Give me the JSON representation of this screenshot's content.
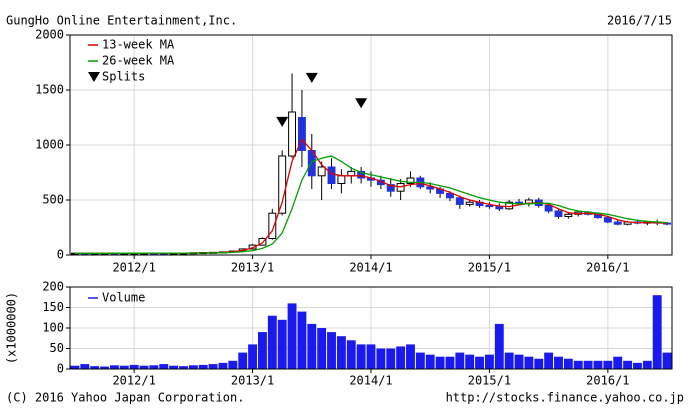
{
  "chart_data": [
    {
      "type": "candlestick",
      "title": "GungHo Online Entertainment,Inc.",
      "date": "2016/7/15",
      "x": [
        "2011/7",
        "2011/8",
        "2011/9",
        "2011/10",
        "2011/11",
        "2011/12",
        "2012/1",
        "2012/2",
        "2012/3",
        "2012/4",
        "2012/5",
        "2012/6",
        "2012/7",
        "2012/8",
        "2012/9",
        "2012/10",
        "2012/11",
        "2012/12",
        "2013/1",
        "2013/2",
        "2013/3",
        "2013/4",
        "2013/5",
        "2013/6",
        "2013/7",
        "2013/8",
        "2013/9",
        "2013/10",
        "2013/11",
        "2013/12",
        "2014/1",
        "2014/2",
        "2014/3",
        "2014/4",
        "2014/5",
        "2014/6",
        "2014/7",
        "2014/8",
        "2014/9",
        "2014/10",
        "2014/11",
        "2014/12",
        "2015/1",
        "2015/2",
        "2015/3",
        "2015/4",
        "2015/5",
        "2015/6",
        "2015/7",
        "2015/8",
        "2015/9",
        "2015/10",
        "2015/11",
        "2015/12",
        "2016/1",
        "2016/2",
        "2016/3",
        "2016/4",
        "2016/5",
        "2016/6",
        "2016/7"
      ],
      "open": [
        15,
        16,
        15,
        16,
        16,
        15,
        16,
        17,
        18,
        17,
        16,
        17,
        18,
        20,
        22,
        24,
        28,
        36,
        55,
        90,
        150,
        380,
        900,
        1250,
        950,
        720,
        800,
        650,
        720,
        760,
        700,
        680,
        640,
        580,
        650,
        700,
        620,
        600,
        560,
        520,
        460,
        480,
        450,
        440,
        420,
        480,
        470,
        500,
        450,
        400,
        350,
        370,
        390,
        370,
        340,
        300,
        280,
        300,
        290,
        300,
        290
      ],
      "high": [
        17,
        17,
        17,
        17,
        17,
        17,
        18,
        19,
        20,
        19,
        18,
        19,
        21,
        24,
        26,
        30,
        40,
        60,
        100,
        160,
        420,
        950,
        1650,
        1500,
        1100,
        850,
        880,
        780,
        800,
        800,
        760,
        720,
        700,
        690,
        760,
        720,
        660,
        620,
        580,
        540,
        500,
        500,
        480,
        470,
        500,
        510,
        520,
        520,
        470,
        420,
        390,
        400,
        400,
        380,
        350,
        320,
        310,
        320,
        310,
        320,
        300
      ],
      "low": [
        14,
        14,
        14,
        15,
        14,
        14,
        15,
        16,
        16,
        15,
        15,
        16,
        17,
        19,
        20,
        22,
        26,
        34,
        50,
        85,
        140,
        360,
        880,
        800,
        600,
        500,
        600,
        560,
        650,
        650,
        620,
        600,
        530,
        500,
        620,
        600,
        560,
        520,
        490,
        420,
        440,
        430,
        420,
        400,
        410,
        450,
        440,
        430,
        380,
        330,
        330,
        350,
        360,
        330,
        290,
        270,
        270,
        280,
        270,
        270,
        270
      ],
      "close": [
        16,
        15,
        16,
        16,
        15,
        16,
        17,
        18,
        17,
        16,
        17,
        18,
        20,
        22,
        24,
        28,
        36,
        55,
        90,
        150,
        380,
        900,
        1300,
        950,
        720,
        800,
        650,
        720,
        760,
        700,
        680,
        640,
        580,
        650,
        700,
        620,
        600,
        560,
        520,
        460,
        480,
        450,
        440,
        420,
        480,
        470,
        500,
        450,
        400,
        350,
        370,
        390,
        370,
        340,
        300,
        280,
        300,
        290,
        300,
        290,
        285
      ],
      "up_color": "#ffffff",
      "down_color": "#2233dd",
      "series": [
        {
          "name": "13-week MA",
          "color": "#e00000",
          "values": [
            15,
            15,
            15,
            16,
            16,
            15,
            16,
            17,
            17,
            17,
            17,
            17,
            18,
            20,
            22,
            25,
            30,
            42,
            65,
            110,
            220,
            480,
            850,
            1050,
            950,
            820,
            740,
            720,
            720,
            720,
            700,
            670,
            630,
            620,
            640,
            650,
            630,
            600,
            570,
            530,
            500,
            480,
            460,
            445,
            440,
            455,
            470,
            475,
            460,
            420,
            385,
            375,
            380,
            370,
            350,
            320,
            300,
            295,
            295,
            293,
            290
          ]
        },
        {
          "name": "26-week MA",
          "color": "#00a000",
          "values": [
            15,
            15,
            15,
            15,
            16,
            16,
            16,
            16,
            17,
            17,
            17,
            17,
            17,
            18,
            19,
            21,
            24,
            30,
            40,
            60,
            100,
            200,
            420,
            680,
            850,
            880,
            900,
            850,
            790,
            750,
            730,
            710,
            690,
            670,
            660,
            660,
            650,
            630,
            610,
            580,
            550,
            520,
            500,
            480,
            470,
            465,
            465,
            470,
            470,
            450,
            420,
            400,
            390,
            380,
            370,
            350,
            330,
            315,
            305,
            300,
            295
          ]
        }
      ],
      "splits": {
        "name": "Splits",
        "x": [
          "2013/4",
          "2013/7",
          "2013/12"
        ],
        "values": [
          1210,
          1610,
          1380
        ]
      },
      "ylim": [
        0,
        2000
      ],
      "yticks": [
        0,
        500,
        1000,
        1500,
        2000
      ],
      "xticks": [
        "2012/1",
        "2013/1",
        "2014/1",
        "2015/1",
        "2016/1"
      ],
      "grid": true
    },
    {
      "type": "bar",
      "x": [
        "2011/7",
        "2011/8",
        "2011/9",
        "2011/10",
        "2011/11",
        "2011/12",
        "2012/1",
        "2012/2",
        "2012/3",
        "2012/4",
        "2012/5",
        "2012/6",
        "2012/7",
        "2012/8",
        "2012/9",
        "2012/10",
        "2012/11",
        "2012/12",
        "2013/1",
        "2013/2",
        "2013/3",
        "2013/4",
        "2013/5",
        "2013/6",
        "2013/7",
        "2013/8",
        "2013/9",
        "2013/10",
        "2013/11",
        "2013/12",
        "2014/1",
        "2014/2",
        "2014/3",
        "2014/4",
        "2014/5",
        "2014/6",
        "2014/7",
        "2014/8",
        "2014/9",
        "2014/10",
        "2014/11",
        "2014/12",
        "2015/1",
        "2015/2",
        "2015/3",
        "2015/4",
        "2015/5",
        "2015/6",
        "2015/7",
        "2015/8",
        "2015/9",
        "2015/10",
        "2015/11",
        "2015/12",
        "2016/1",
        "2016/2",
        "2016/3",
        "2016/4",
        "2016/5",
        "2016/6",
        "2016/7"
      ],
      "series": [
        {
          "name": "Volume",
          "color": "#1a1aee",
          "values": [
            8,
            12,
            7,
            6,
            9,
            8,
            10,
            8,
            9,
            12,
            8,
            7,
            9,
            10,
            12,
            15,
            20,
            40,
            60,
            90,
            130,
            120,
            160,
            140,
            110,
            100,
            90,
            80,
            70,
            60,
            60,
            50,
            50,
            55,
            60,
            40,
            35,
            30,
            30,
            40,
            35,
            30,
            35,
            110,
            40,
            35,
            30,
            25,
            40,
            30,
            25,
            20,
            20,
            20,
            20,
            30,
            20,
            15,
            20,
            180,
            40
          ]
        }
      ],
      "y_label": "(x1000000)",
      "ylim": [
        0,
        200
      ],
      "yticks": [
        0,
        50,
        100,
        150,
        200
      ],
      "xticks": [
        "2012/1",
        "2013/1",
        "2014/1",
        "2015/1",
        "2016/1"
      ],
      "grid": true
    }
  ],
  "footer": {
    "copyright": "(C) 2016 Yahoo Japan Corporation.",
    "url": "http://stocks.finance.yahoo.co.jp"
  }
}
